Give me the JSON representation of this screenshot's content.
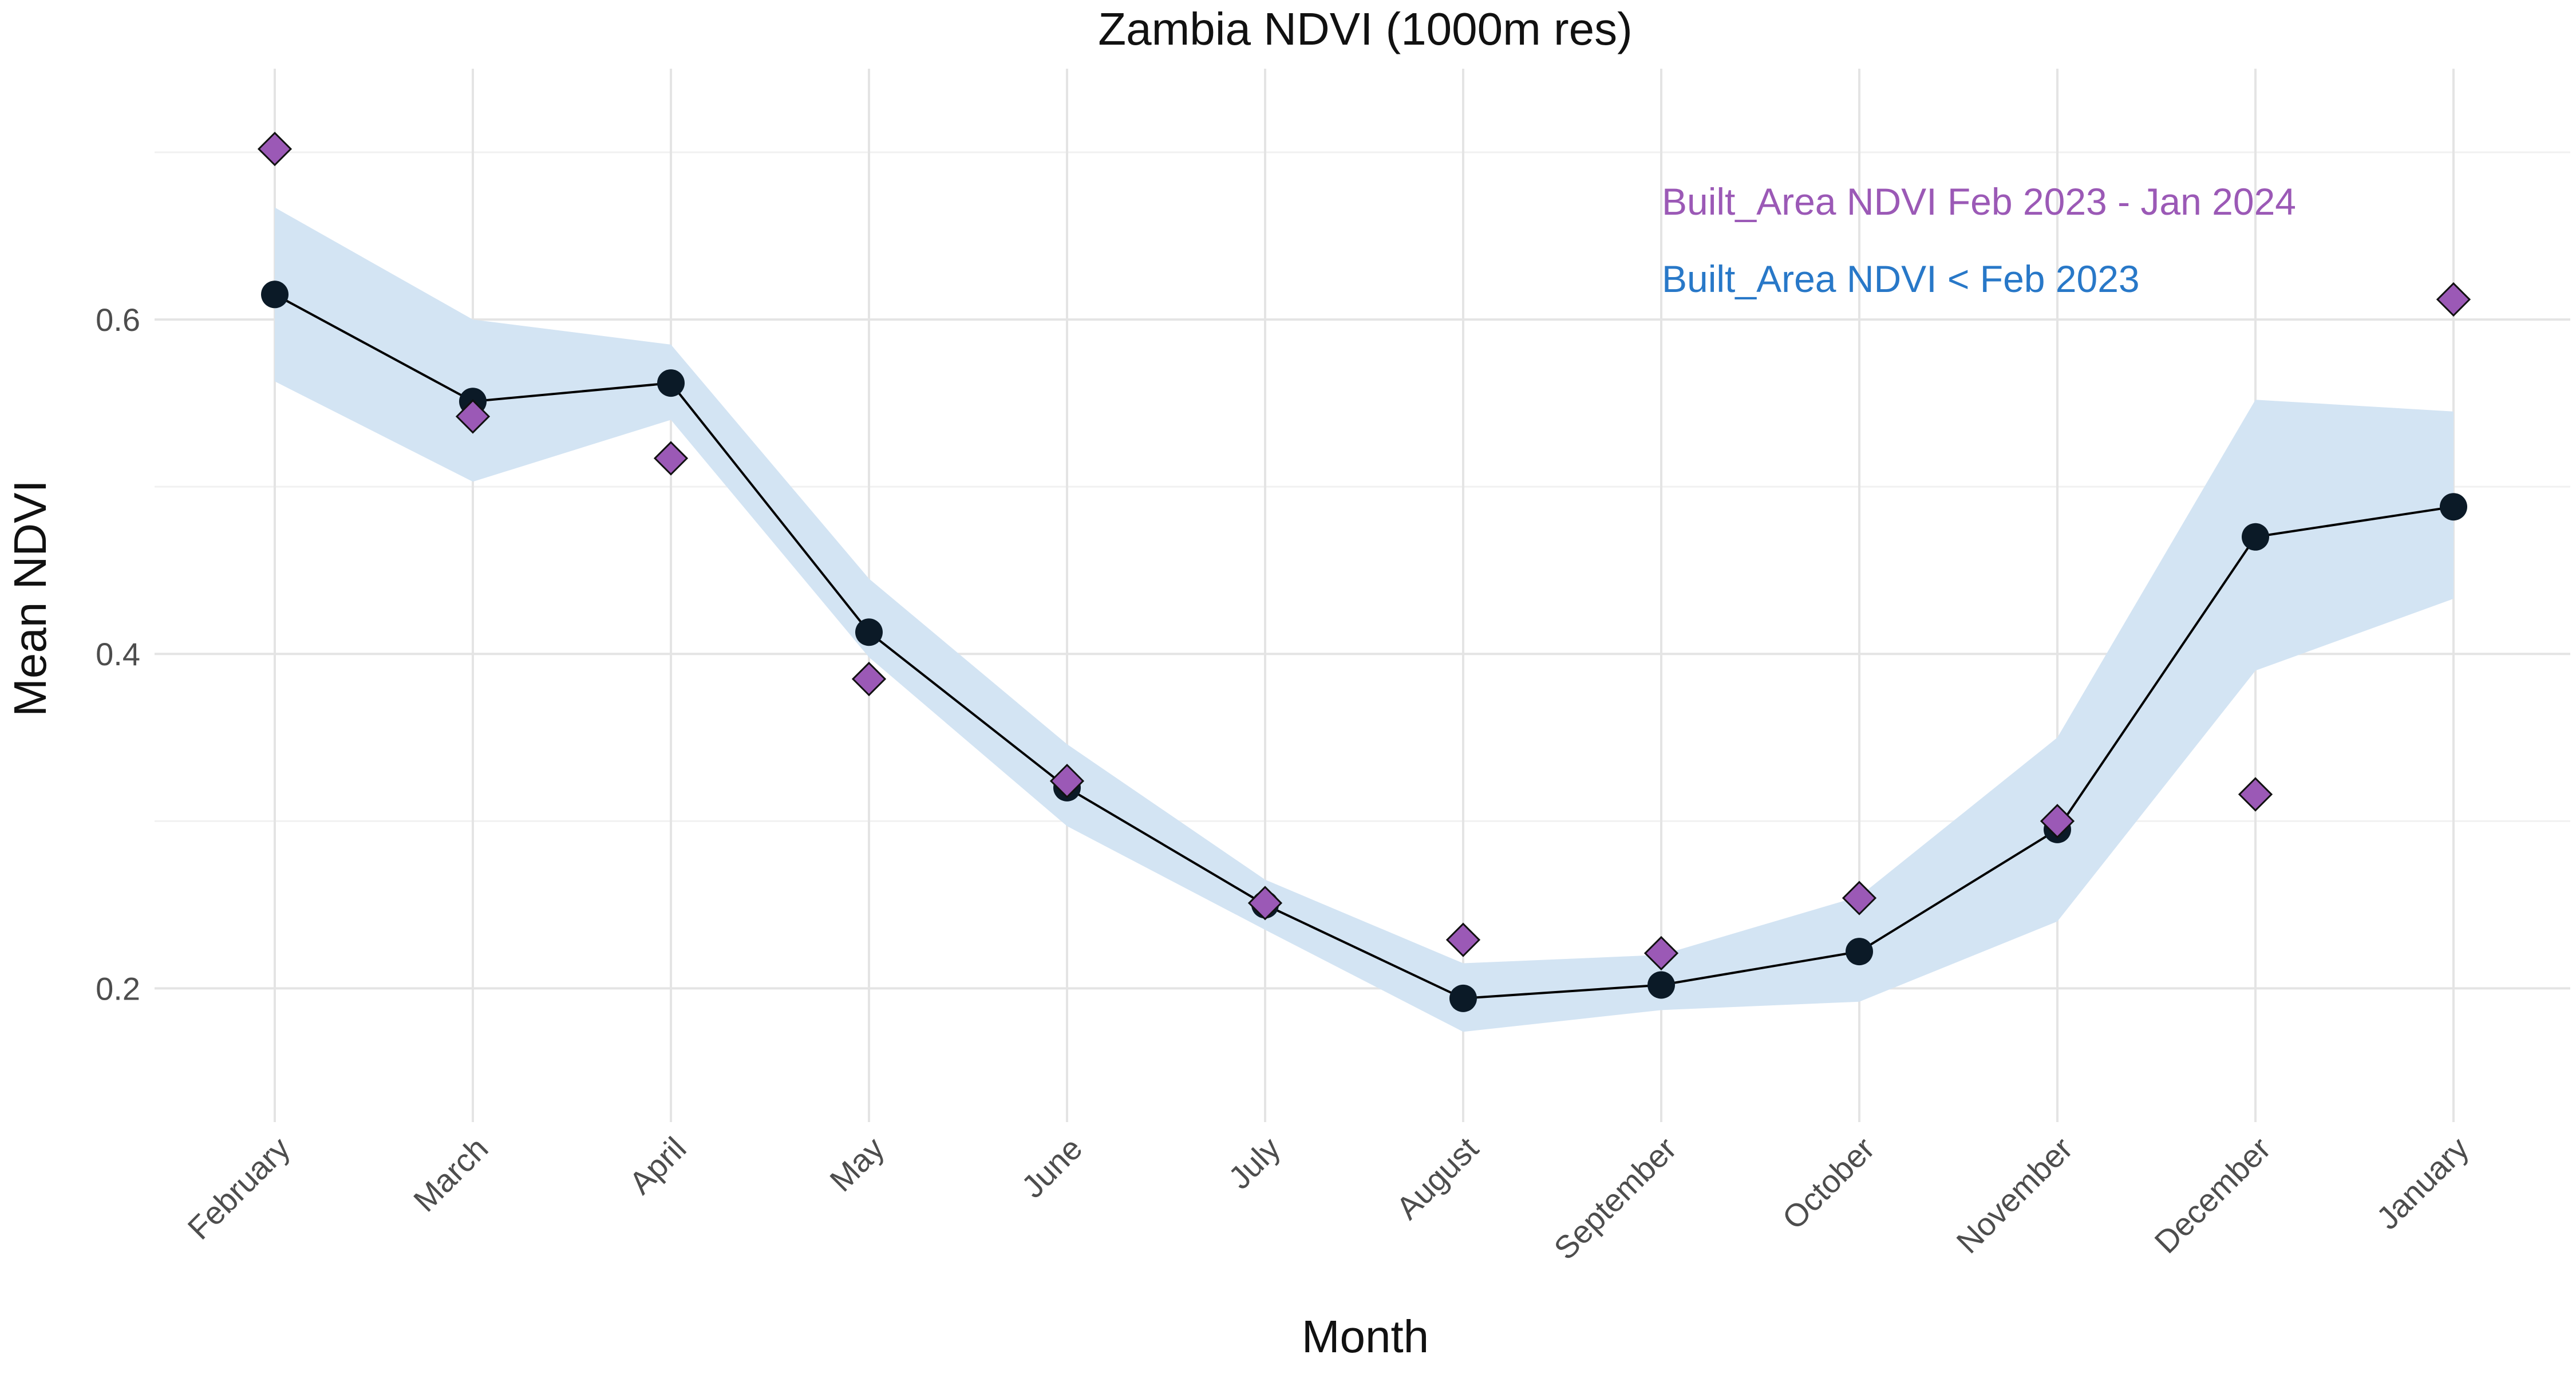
{
  "chart_data": {
    "type": "line",
    "title": "Zambia NDVI (1000m res)",
    "xlabel": "Month",
    "ylabel": "Mean NDVI",
    "categories": [
      "February",
      "March",
      "April",
      "May",
      "June",
      "July",
      "August",
      "September",
      "October",
      "November",
      "December",
      "January"
    ],
    "ylim": [
      0.12,
      0.75
    ],
    "yticks": [
      0.2,
      0.4,
      0.6
    ],
    "ytick_labels": [
      "0.2",
      "0.4",
      "0.6"
    ],
    "grid": true,
    "legend_position": "top-right",
    "series": [
      {
        "name": "Built_Area NDVI < Feb 2023",
        "color": "#2878c8",
        "line_color": "#000000",
        "point_color": "#0b1a27",
        "marker": "circle",
        "values": [
          0.615,
          0.551,
          0.562,
          0.413,
          0.32,
          0.25,
          0.194,
          0.202,
          0.222,
          0.295,
          0.47,
          0.488
        ],
        "band_lower": [
          0.563,
          0.503,
          0.54,
          0.398,
          0.297,
          0.235,
          0.174,
          0.187,
          0.192,
          0.24,
          0.39,
          0.433
        ],
        "band_upper": [
          0.667,
          0.6,
          0.585,
          0.445,
          0.346,
          0.265,
          0.215,
          0.22,
          0.255,
          0.35,
          0.552,
          0.545
        ],
        "band_color": "#d3e4f3"
      },
      {
        "name": "Built_Area NDVI Feb 2023 - Jan 2024",
        "color": "#9b59b6",
        "marker": "diamond",
        "values": [
          0.702,
          0.542,
          0.517,
          0.385,
          0.324,
          0.251,
          0.229,
          0.221,
          0.254,
          0.3,
          0.316,
          0.612
        ]
      }
    ],
    "legend": [
      {
        "label": "Built_Area NDVI Feb 2023 - Jan 2024",
        "color": "#9b59b6"
      },
      {
        "label": "Built_Area NDVI < Feb 2023",
        "color": "#2878c8"
      }
    ]
  }
}
